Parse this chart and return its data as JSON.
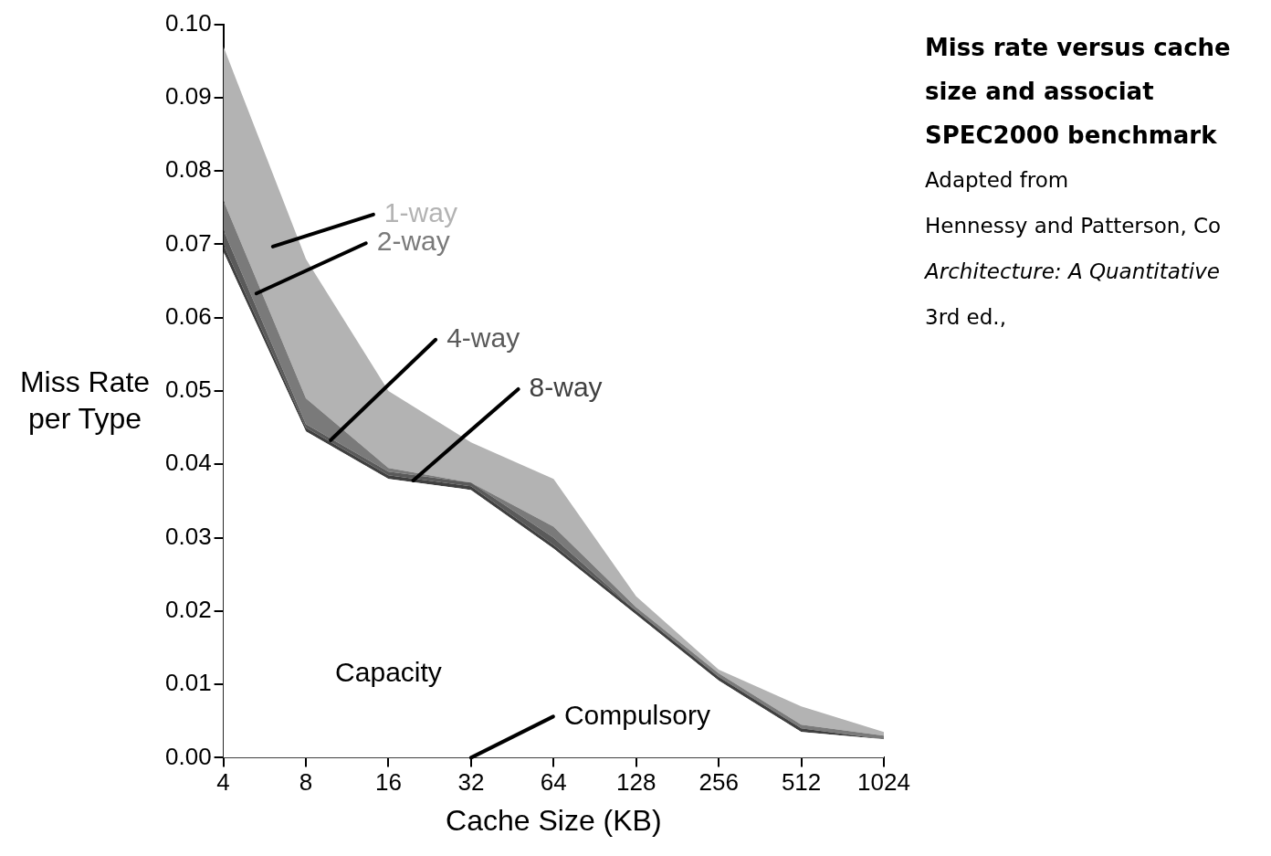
{
  "chart_data": {
    "type": "area",
    "stacked": true,
    "title": "Miss rate versus cache size and associat",
    "subtitle": "SPEC2000 benchmark",
    "xlabel": "Cache Size (KB)",
    "ylabel": "Miss Rate per Type",
    "categories": [
      "4",
      "8",
      "16",
      "32",
      "64",
      "128",
      "256",
      "512",
      "1024"
    ],
    "series": [
      {
        "name": "Capacity",
        "color": "#ffffff",
        "values": [
          0.069,
          0.0445,
          0.038,
          0.0365,
          0.0285,
          0.0195,
          0.0105,
          0.0035,
          0.0025
        ]
      },
      {
        "name": "8-way",
        "color": "#404040",
        "values": [
          0.001,
          0.0005,
          0.0005,
          0.0005,
          0.0005,
          0.0005,
          0.0005,
          0.0005,
          0
        ]
      },
      {
        "name": "4-way",
        "color": "#5a5a5a",
        "values": [
          0.002,
          0.0005,
          0.0005,
          0.0005,
          0.001,
          0,
          0,
          0,
          0
        ]
      },
      {
        "name": "2-way",
        "color": "#7a7a7a",
        "values": [
          0.004,
          0.0035,
          0.0005,
          0,
          0.0015,
          0.0005,
          0.0005,
          0.0005,
          0.0005
        ]
      },
      {
        "name": "1-way",
        "color": "#b3b3b3",
        "values": [
          0.021,
          0.019,
          0.0105,
          0.0055,
          0.0065,
          0.0015,
          0.0005,
          0.0025,
          0.0005
        ]
      }
    ],
    "ylim": [
      0,
      0.1
    ],
    "yticks": [
      {
        "value": 0,
        "label": "0.00"
      },
      {
        "value": 0.01,
        "label": "0.01"
      },
      {
        "value": 0.02,
        "label": "0.02"
      },
      {
        "value": 0.03,
        "label": "0.03"
      },
      {
        "value": 0.04,
        "label": "0.04"
      },
      {
        "value": 0.05,
        "label": "0.05"
      },
      {
        "value": 0.06,
        "label": "0.06"
      },
      {
        "value": 0.07,
        "label": "0.07"
      },
      {
        "value": 0.08,
        "label": "0.08"
      },
      {
        "value": 0.09,
        "label": "0.09"
      },
      {
        "value": 0.1,
        "label": "0.10"
      }
    ],
    "grid": false,
    "legend": false,
    "marker": "none",
    "annotations": [
      {
        "text": "Compulsory",
        "x": "32",
        "y": 0
      },
      "Adapted from",
      "Hennessy and Patterson, Co",
      "Architecture: A Quantitative",
      "3rd ed.,"
    ]
  }
}
